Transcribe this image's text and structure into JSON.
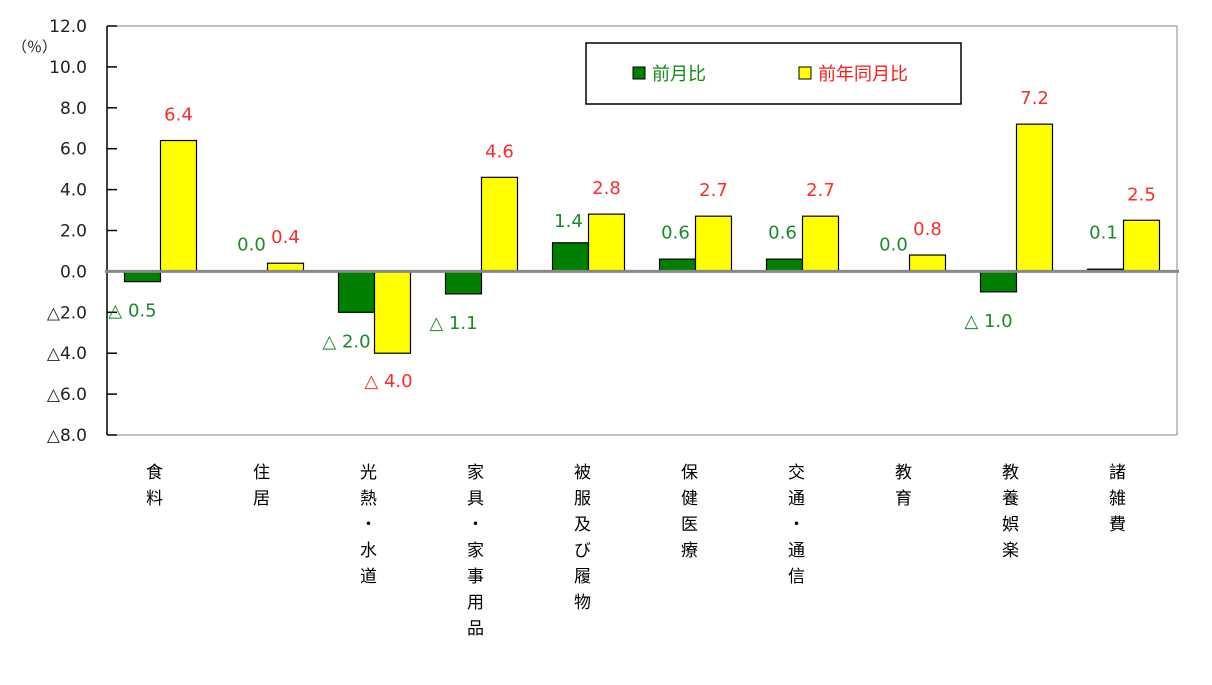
{
  "chart_data": {
    "type": "bar",
    "title": "",
    "unit_label": "（％）",
    "xlabel": "",
    "ylabel": "（％）",
    "ylim": [
      -8.0,
      12.0
    ],
    "yticks": [
      12.0,
      10.0,
      8.0,
      6.0,
      4.0,
      2.0,
      0.0,
      -2.0,
      -4.0,
      -6.0,
      -8.0
    ],
    "ytick_labels": [
      "12.0",
      "10.0",
      "8.0",
      "6.0",
      "4.0",
      "2.0",
      "0.0",
      "△2.0",
      "△4.0",
      "△6.0",
      "△8.0"
    ],
    "grid": false,
    "legend_position": "top-right-inside",
    "categories": [
      "食料",
      "住居",
      "光熱・水道",
      "家具・家事用品",
      "被服及び履物",
      "保健医療",
      "交通・通信",
      "教育",
      "教養娯楽",
      "諸雑費"
    ],
    "category_lines": [
      [
        "食",
        "料"
      ],
      [
        "住",
        "居"
      ],
      [
        "光",
        "熱",
        "・",
        "水",
        "道"
      ],
      [
        "家",
        "具",
        "・",
        "家",
        "事",
        "用",
        "品"
      ],
      [
        "被",
        "服",
        "及",
        "び",
        "履",
        "物"
      ],
      [
        "保",
        "健",
        "医",
        "療"
      ],
      [
        "交",
        "通",
        "・",
        "通",
        "信"
      ],
      [
        "教",
        "育"
      ],
      [
        "教",
        "養",
        "娯",
        "楽"
      ],
      [
        "諸",
        "雑",
        "費"
      ]
    ],
    "series": [
      {
        "name": "前月比",
        "color": "#008000",
        "label_color": "#1a8a2a",
        "values": [
          -0.5,
          0.0,
          -2.0,
          -1.1,
          1.4,
          0.6,
          0.6,
          0.0,
          -1.0,
          0.1
        ],
        "labels": [
          "△ 0.5",
          "0.0",
          "△ 2.0",
          "△ 1.1",
          "1.4",
          "0.6",
          "0.6",
          "0.0",
          "△ 1.0",
          "0.1"
        ]
      },
      {
        "name": "前年同月比",
        "color": "#ffff00",
        "label_color": "#ff2a2a",
        "values": [
          6.4,
          0.4,
          -4.0,
          4.6,
          2.8,
          2.7,
          2.7,
          0.8,
          7.2,
          2.5
        ],
        "labels": [
          "6.4",
          "0.4",
          "△ 4.0",
          "4.6",
          "2.8",
          "2.7",
          "2.7",
          "0.8",
          "7.2",
          "2.5"
        ]
      }
    ]
  },
  "legend": {
    "items": [
      {
        "label": "前月比",
        "color": "#008000",
        "text_color": "#138a13"
      },
      {
        "label": "前年同月比",
        "color": "#ffff00",
        "text_color": "#ff1a1a"
      }
    ]
  }
}
